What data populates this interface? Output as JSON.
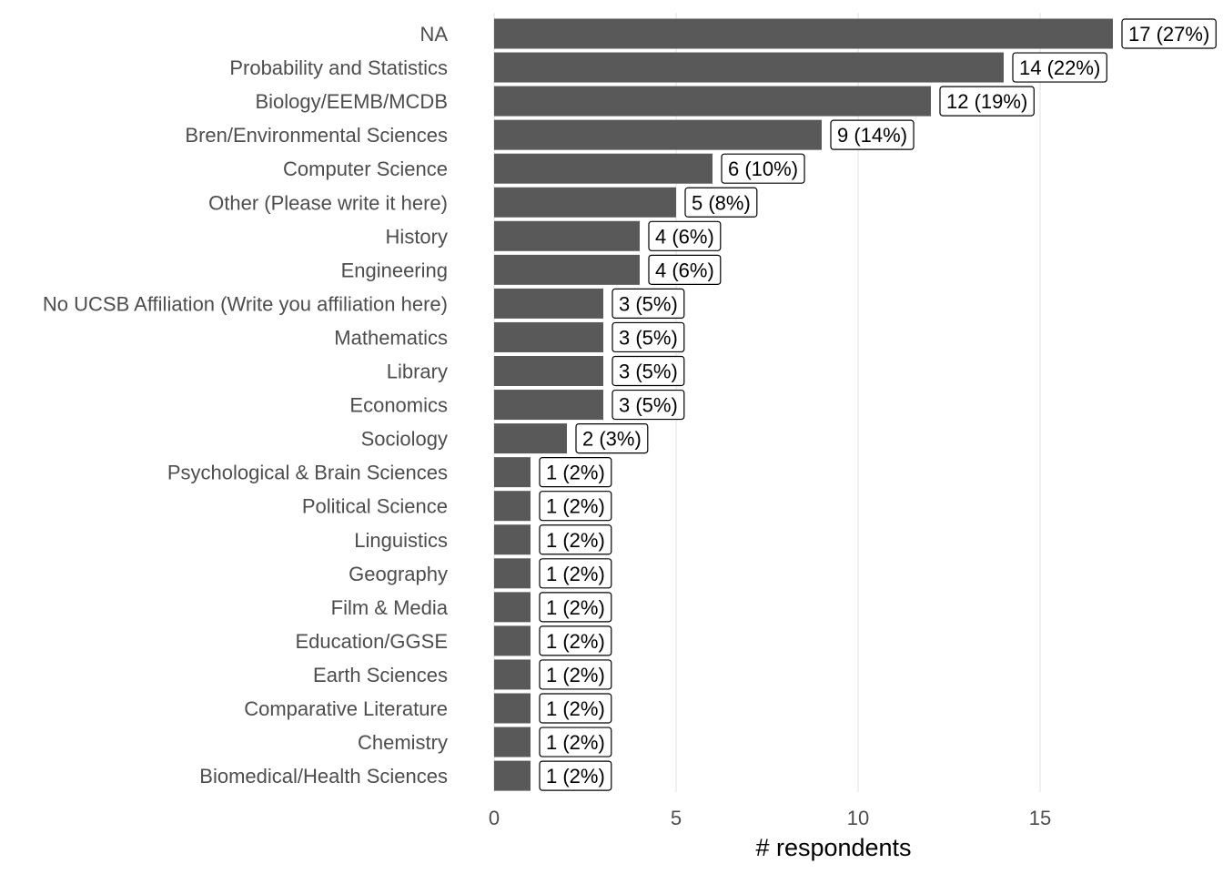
{
  "chart_data": {
    "type": "bar",
    "orientation": "horizontal",
    "categories": [
      "NA",
      "Probability and Statistics",
      "Biology/EEMB/MCDB",
      "Bren/Environmental Sciences",
      "Computer Science",
      "Other (Please write it here)",
      "History",
      "Engineering",
      "No UCSB Affiliation (Write you affiliation here)",
      "Mathematics",
      "Library",
      "Economics",
      "Sociology",
      "Psychological & Brain Sciences",
      "Political Science",
      "Linguistics",
      "Geography",
      "Film & Media",
      "Education/GGSE",
      "Earth Sciences",
      "Comparative Literature",
      "Chemistry",
      "Biomedical/Health Sciences"
    ],
    "values": [
      17,
      14,
      12,
      9,
      6,
      5,
      4,
      4,
      3,
      3,
      3,
      3,
      2,
      1,
      1,
      1,
      1,
      1,
      1,
      1,
      1,
      1,
      1
    ],
    "data_labels": [
      "17 (27%)",
      "14 (22%)",
      "12 (19%)",
      "9 (14%)",
      "6 (10%)",
      "5 (8%)",
      "4 (6%)",
      "4 (6%)",
      "3 (5%)",
      "3 (5%)",
      "3 (5%)",
      "3 (5%)",
      "2 (3%)",
      "1 (2%)",
      "1 (2%)",
      "1 (2%)",
      "1 (2%)",
      "1 (2%)",
      "1 (2%)",
      "1 (2%)",
      "1 (2%)",
      "1 (2%)",
      "1 (2%)"
    ],
    "xlabel": "# respondents",
    "ylabel": "",
    "title": "",
    "xlim": [
      0,
      19.7
    ],
    "xticks": [
      0,
      5,
      10,
      15
    ],
    "grid": "vertical",
    "bar_color": "#595959"
  }
}
